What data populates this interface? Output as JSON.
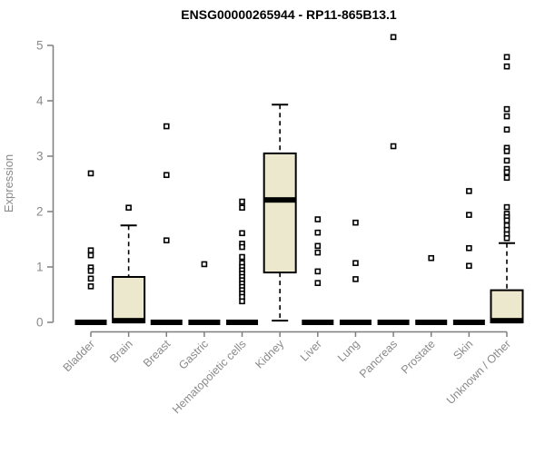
{
  "page": {
    "background": "#ffffff"
  },
  "colors": {
    "box_fill": "#ece8cd",
    "box_stroke": "#000000",
    "median": "#000000",
    "whisker": "#000000",
    "outlier_fill": "#ffffff",
    "outlier_stroke": "#000000",
    "axis": "#7f7f7f",
    "tick_label": "#8a8a8a",
    "title": "#000000"
  },
  "chart_data": {
    "type": "boxplot",
    "title": "ENSG00000265944 - RP11-865B13.1",
    "ylabel": "Expression",
    "xlabel": "",
    "ylim": [
      0,
      5
    ],
    "yticks": [
      0,
      1,
      2,
      3,
      4,
      5
    ],
    "grid": false,
    "legend": "none",
    "categories": [
      "Bladder",
      "Brain",
      "Breast",
      "Gastric",
      "Hematopoietic cells",
      "Kidney",
      "Liver",
      "Lung",
      "Pancreas",
      "Prostate",
      "Skin",
      "Unknown / Other"
    ],
    "series": [
      {
        "tissue": "Bladder",
        "median": 0,
        "q1": 0,
        "q3": 0,
        "whisker_low": 0,
        "whisker_high": 0,
        "outliers": [
          2.69,
          1.3,
          1.21,
          0.99,
          0.93,
          0.79,
          0.65
        ]
      },
      {
        "tissue": "Brain",
        "median": 0.03,
        "q1": 0,
        "q3": 0.82,
        "whisker_low": 0,
        "whisker_high": 1.75,
        "outliers": [
          2.07
        ]
      },
      {
        "tissue": "Breast",
        "median": 0,
        "q1": 0,
        "q3": 0,
        "whisker_low": 0,
        "whisker_high": 0,
        "outliers": [
          3.54,
          2.66,
          1.48
        ]
      },
      {
        "tissue": "Gastric",
        "median": 0,
        "q1": 0,
        "q3": 0,
        "whisker_low": 0,
        "whisker_high": 0,
        "outliers": [
          1.05
        ]
      },
      {
        "tissue": "Hematopoietic cells",
        "median": 0,
        "q1": 0,
        "q3": 0,
        "whisker_low": 0,
        "whisker_high": 0,
        "outliers": [
          2.18,
          2.07,
          1.61,
          1.42,
          1.36,
          1.18,
          1.07,
          1.0,
          0.94,
          0.88,
          0.82,
          0.76,
          0.7,
          0.64,
          0.58,
          0.52,
          0.46,
          0.38
        ]
      },
      {
        "tissue": "Kidney",
        "median": 2.21,
        "q1": 0.9,
        "q3": 3.05,
        "whisker_low": 0.03,
        "whisker_high": 3.93,
        "outliers": []
      },
      {
        "tissue": "Liver",
        "median": 0,
        "q1": 0,
        "q3": 0,
        "whisker_low": 0,
        "whisker_high": 0,
        "outliers": [
          1.86,
          1.62,
          1.38,
          1.26,
          0.92,
          0.71
        ]
      },
      {
        "tissue": "Lung",
        "median": 0,
        "q1": 0,
        "q3": 0,
        "whisker_low": 0,
        "whisker_high": 0,
        "outliers": [
          1.8,
          1.07,
          0.78
        ]
      },
      {
        "tissue": "Pancreas",
        "median": 0,
        "q1": 0,
        "q3": 0,
        "whisker_low": 0,
        "whisker_high": 0,
        "outliers": [
          5.15,
          3.18
        ]
      },
      {
        "tissue": "Prostate",
        "median": 0,
        "q1": 0,
        "q3": 0,
        "whisker_low": 0,
        "whisker_high": 0,
        "outliers": [
          1.16
        ]
      },
      {
        "tissue": "Skin",
        "median": 0,
        "q1": 0,
        "q3": 0,
        "whisker_low": 0,
        "whisker_high": 0,
        "outliers": [
          2.37,
          1.94,
          1.34,
          1.02
        ]
      },
      {
        "tissue": "Unknown / Other",
        "median": 0.03,
        "q1": 0,
        "q3": 0.58,
        "whisker_low": 0,
        "whisker_high": 1.43,
        "outliers": [
          4.79,
          4.62,
          3.85,
          3.72,
          3.48,
          3.15,
          3.09,
          2.92,
          2.77,
          2.71,
          2.61,
          2.08,
          1.96,
          1.9,
          1.84,
          1.75,
          1.67,
          1.59,
          1.52
        ]
      }
    ]
  }
}
